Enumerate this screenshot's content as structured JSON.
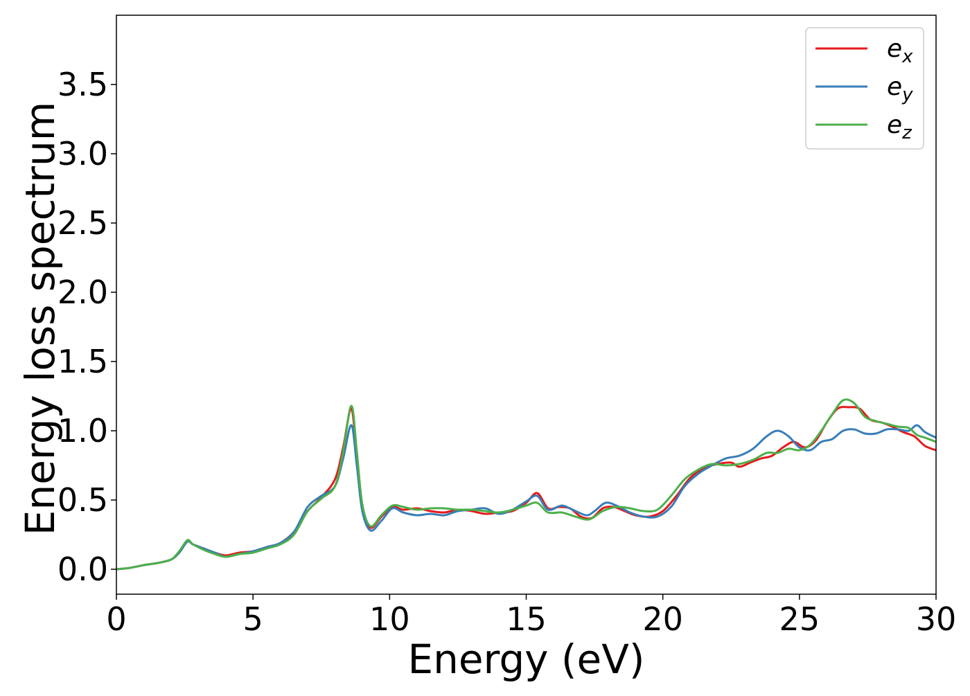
{
  "chart_data": {
    "type": "line",
    "xlabel": "Energy (eV)",
    "ylabel": "Energy loss spectrum",
    "xlim": [
      0,
      30
    ],
    "ylim": [
      -0.18,
      4.0
    ],
    "xticks": [
      0,
      5,
      10,
      15,
      20,
      25,
      30
    ],
    "yticks": [
      0.0,
      0.5,
      1.0,
      1.5,
      2.0,
      2.5,
      3.0,
      3.5
    ],
    "grid": false,
    "legend_position": "top-right",
    "series": [
      {
        "name": "e",
        "subscript": "x",
        "color": "#e41a1c",
        "points": [
          [
            0,
            0.0
          ],
          [
            0.5,
            0.01
          ],
          [
            1,
            0.03
          ],
          [
            1.5,
            0.045
          ],
          [
            2,
            0.07
          ],
          [
            2.3,
            0.12
          ],
          [
            2.6,
            0.2
          ],
          [
            2.8,
            0.18
          ],
          [
            3.2,
            0.15
          ],
          [
            3.6,
            0.12
          ],
          [
            4,
            0.1
          ],
          [
            4.5,
            0.12
          ],
          [
            5,
            0.13
          ],
          [
            5.5,
            0.16
          ],
          [
            6,
            0.19
          ],
          [
            6.5,
            0.27
          ],
          [
            7,
            0.42
          ],
          [
            7.5,
            0.52
          ],
          [
            8,
            0.65
          ],
          [
            8.3,
            0.88
          ],
          [
            8.6,
            1.16
          ],
          [
            8.8,
            0.8
          ],
          [
            9,
            0.45
          ],
          [
            9.3,
            0.3
          ],
          [
            9.7,
            0.38
          ],
          [
            10.1,
            0.45
          ],
          [
            10.5,
            0.43
          ],
          [
            11,
            0.44
          ],
          [
            11.5,
            0.42
          ],
          [
            12,
            0.41
          ],
          [
            12.5,
            0.43
          ],
          [
            13,
            0.42
          ],
          [
            13.5,
            0.4
          ],
          [
            14,
            0.41
          ],
          [
            14.5,
            0.42
          ],
          [
            15,
            0.48
          ],
          [
            15.4,
            0.55
          ],
          [
            15.8,
            0.44
          ],
          [
            16.2,
            0.45
          ],
          [
            16.6,
            0.44
          ],
          [
            17,
            0.38
          ],
          [
            17.4,
            0.37
          ],
          [
            17.8,
            0.44
          ],
          [
            18.2,
            0.45
          ],
          [
            18.6,
            0.42
          ],
          [
            19,
            0.39
          ],
          [
            19.5,
            0.38
          ],
          [
            20,
            0.42
          ],
          [
            20.5,
            0.53
          ],
          [
            21,
            0.66
          ],
          [
            21.5,
            0.73
          ],
          [
            22,
            0.76
          ],
          [
            22.5,
            0.77
          ],
          [
            22.8,
            0.74
          ],
          [
            23.2,
            0.77
          ],
          [
            23.6,
            0.8
          ],
          [
            24,
            0.82
          ],
          [
            24.4,
            0.88
          ],
          [
            24.8,
            0.92
          ],
          [
            25.2,
            0.88
          ],
          [
            25.6,
            0.93
          ],
          [
            26,
            1.06
          ],
          [
            26.4,
            1.16
          ],
          [
            26.8,
            1.17
          ],
          [
            27.2,
            1.16
          ],
          [
            27.6,
            1.08
          ],
          [
            28,
            1.06
          ],
          [
            28.4,
            1.03
          ],
          [
            28.8,
            0.99
          ],
          [
            29.2,
            0.96
          ],
          [
            29.6,
            0.89
          ],
          [
            30,
            0.86
          ]
        ]
      },
      {
        "name": "e",
        "subscript": "y",
        "color": "#377eb8",
        "points": [
          [
            0,
            0.0
          ],
          [
            0.5,
            0.01
          ],
          [
            1,
            0.03
          ],
          [
            1.5,
            0.045
          ],
          [
            2,
            0.07
          ],
          [
            2.3,
            0.12
          ],
          [
            2.6,
            0.2
          ],
          [
            2.8,
            0.18
          ],
          [
            3.2,
            0.15
          ],
          [
            3.6,
            0.12
          ],
          [
            4,
            0.09
          ],
          [
            4.5,
            0.11
          ],
          [
            5,
            0.13
          ],
          [
            5.5,
            0.16
          ],
          [
            6,
            0.19
          ],
          [
            6.5,
            0.27
          ],
          [
            7,
            0.45
          ],
          [
            7.5,
            0.53
          ],
          [
            8,
            0.6
          ],
          [
            8.3,
            0.8
          ],
          [
            8.6,
            1.04
          ],
          [
            8.8,
            0.75
          ],
          [
            9,
            0.42
          ],
          [
            9.3,
            0.28
          ],
          [
            9.7,
            0.35
          ],
          [
            10.1,
            0.44
          ],
          [
            10.5,
            0.41
          ],
          [
            11,
            0.39
          ],
          [
            11.5,
            0.4
          ],
          [
            12,
            0.39
          ],
          [
            12.5,
            0.42
          ],
          [
            13,
            0.43
          ],
          [
            13.5,
            0.44
          ],
          [
            14,
            0.4
          ],
          [
            14.5,
            0.43
          ],
          [
            15,
            0.49
          ],
          [
            15.4,
            0.53
          ],
          [
            15.8,
            0.43
          ],
          [
            16.3,
            0.46
          ],
          [
            16.7,
            0.43
          ],
          [
            17.2,
            0.39
          ],
          [
            17.5,
            0.42
          ],
          [
            17.9,
            0.48
          ],
          [
            18.3,
            0.46
          ],
          [
            18.8,
            0.41
          ],
          [
            19.3,
            0.38
          ],
          [
            19.8,
            0.38
          ],
          [
            20.3,
            0.45
          ],
          [
            20.8,
            0.6
          ],
          [
            21.3,
            0.69
          ],
          [
            21.8,
            0.75
          ],
          [
            22.3,
            0.8
          ],
          [
            22.8,
            0.82
          ],
          [
            23.3,
            0.87
          ],
          [
            23.8,
            0.96
          ],
          [
            24.2,
            1.0
          ],
          [
            24.6,
            0.96
          ],
          [
            25,
            0.88
          ],
          [
            25.4,
            0.86
          ],
          [
            25.8,
            0.92
          ],
          [
            26.2,
            0.94
          ],
          [
            26.6,
            1.0
          ],
          [
            27,
            1.01
          ],
          [
            27.4,
            0.98
          ],
          [
            27.8,
            0.98
          ],
          [
            28.2,
            1.01
          ],
          [
            28.6,
            1.01
          ],
          [
            29,
            1.0
          ],
          [
            29.3,
            1.04
          ],
          [
            29.6,
            0.99
          ],
          [
            30,
            0.95
          ]
        ]
      },
      {
        "name": "e",
        "subscript": "z",
        "color": "#4daf4a",
        "points": [
          [
            0,
            0.0
          ],
          [
            0.5,
            0.01
          ],
          [
            1,
            0.03
          ],
          [
            1.5,
            0.045
          ],
          [
            2,
            0.07
          ],
          [
            2.3,
            0.13
          ],
          [
            2.6,
            0.21
          ],
          [
            2.8,
            0.18
          ],
          [
            3.2,
            0.14
          ],
          [
            3.6,
            0.11
          ],
          [
            4,
            0.09
          ],
          [
            4.5,
            0.11
          ],
          [
            5,
            0.12
          ],
          [
            5.5,
            0.15
          ],
          [
            6,
            0.18
          ],
          [
            6.5,
            0.25
          ],
          [
            7,
            0.42
          ],
          [
            7.5,
            0.51
          ],
          [
            8,
            0.6
          ],
          [
            8.3,
            0.85
          ],
          [
            8.6,
            1.18
          ],
          [
            8.8,
            0.85
          ],
          [
            9,
            0.47
          ],
          [
            9.3,
            0.31
          ],
          [
            9.7,
            0.39
          ],
          [
            10.1,
            0.46
          ],
          [
            10.5,
            0.45
          ],
          [
            11,
            0.43
          ],
          [
            11.5,
            0.44
          ],
          [
            12,
            0.44
          ],
          [
            12.5,
            0.43
          ],
          [
            13,
            0.43
          ],
          [
            13.5,
            0.42
          ],
          [
            14,
            0.41
          ],
          [
            14.5,
            0.43
          ],
          [
            15,
            0.46
          ],
          [
            15.4,
            0.48
          ],
          [
            15.8,
            0.41
          ],
          [
            16.3,
            0.41
          ],
          [
            16.8,
            0.38
          ],
          [
            17.3,
            0.36
          ],
          [
            17.8,
            0.42
          ],
          [
            18.3,
            0.45
          ],
          [
            18.8,
            0.44
          ],
          [
            19.3,
            0.42
          ],
          [
            19.8,
            0.43
          ],
          [
            20.3,
            0.53
          ],
          [
            20.8,
            0.65
          ],
          [
            21.3,
            0.72
          ],
          [
            21.8,
            0.76
          ],
          [
            22.3,
            0.75
          ],
          [
            22.8,
            0.76
          ],
          [
            23.3,
            0.79
          ],
          [
            23.8,
            0.84
          ],
          [
            24.2,
            0.84
          ],
          [
            24.6,
            0.87
          ],
          [
            25,
            0.86
          ],
          [
            25.4,
            0.9
          ],
          [
            25.8,
            1.0
          ],
          [
            26.2,
            1.12
          ],
          [
            26.6,
            1.22
          ],
          [
            27,
            1.2
          ],
          [
            27.4,
            1.1
          ],
          [
            27.8,
            1.07
          ],
          [
            28.2,
            1.05
          ],
          [
            28.6,
            1.03
          ],
          [
            29,
            1.02
          ],
          [
            29.3,
            0.97
          ],
          [
            29.6,
            0.95
          ],
          [
            30,
            0.92
          ]
        ]
      }
    ]
  }
}
